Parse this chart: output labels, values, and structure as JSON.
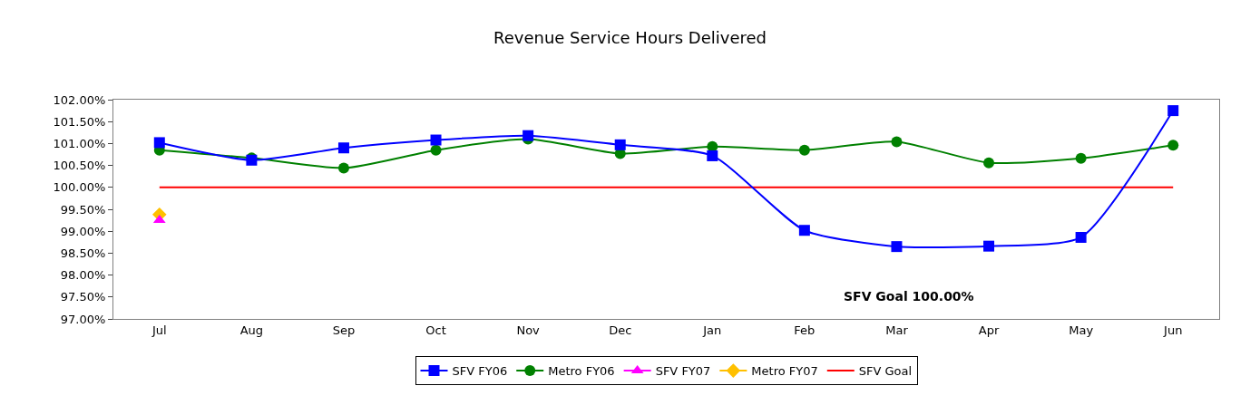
{
  "chart_data": {
    "type": "line",
    "title": "Revenue Service Hours Delivered",
    "categories": [
      "Jul",
      "Aug",
      "Sep",
      "Oct",
      "Nov",
      "Dec",
      "Jan",
      "Feb",
      "Mar",
      "Apr",
      "May",
      "Jun"
    ],
    "series": [
      {
        "name": "SFV FY06",
        "color": "#0000ff",
        "marker": "square",
        "values": [
          101.02,
          100.62,
          100.9,
          101.08,
          101.18,
          100.97,
          100.72,
          99.02,
          98.65,
          98.66,
          98.86,
          101.75
        ]
      },
      {
        "name": "Metro FY06",
        "color": "#008000",
        "marker": "circle",
        "values": [
          100.85,
          100.67,
          100.44,
          100.85,
          101.1,
          100.77,
          100.93,
          100.85,
          101.04,
          100.56,
          100.66,
          100.96
        ]
      },
      {
        "name": "SFV FY07",
        "color": "#ff00ff",
        "marker": "triangle",
        "values": [
          99.25,
          null,
          null,
          null,
          null,
          null,
          null,
          null,
          null,
          null,
          null,
          null
        ]
      },
      {
        "name": "Metro FY07",
        "color": "#ffc000",
        "marker": "diamond",
        "values": [
          99.38,
          null,
          null,
          null,
          null,
          null,
          null,
          null,
          null,
          null,
          null,
          null
        ]
      },
      {
        "name": "SFV Goal",
        "color": "#ff0000",
        "marker": "none",
        "values": [
          100,
          100,
          100,
          100,
          100,
          100,
          100,
          100,
          100,
          100,
          100,
          100
        ]
      }
    ],
    "ylim": [
      97,
      102
    ],
    "yticks": [
      {
        "value": 97,
        "label": "97.00%"
      },
      {
        "value": 97.5,
        "label": "97.50%"
      },
      {
        "value": 98,
        "label": "98.00%"
      },
      {
        "value": 98.5,
        "label": "98.50%"
      },
      {
        "value": 99,
        "label": "99.00%"
      },
      {
        "value": 99.5,
        "label": "99.50%"
      },
      {
        "value": 100,
        "label": "100.00%"
      },
      {
        "value": 100.5,
        "label": "100.50%"
      },
      {
        "value": 101,
        "label": "101.00%"
      },
      {
        "value": 101.5,
        "label": "101.50%"
      },
      {
        "value": 102,
        "label": "102.00%"
      }
    ],
    "annotations": [
      "SFV Goal 100.00%"
    ],
    "legend": "bottom",
    "line_style": "solid"
  }
}
